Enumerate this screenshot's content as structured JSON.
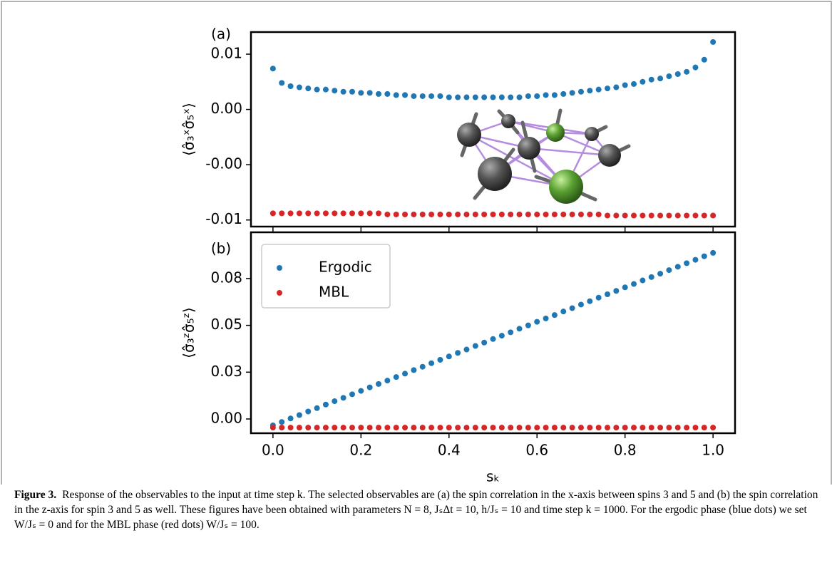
{
  "chart_data": [
    {
      "type": "scatter",
      "panel_label": "(a)",
      "y_label": "⟨σ̂₃ˣσ̂₅ˣ⟩",
      "x": [
        0,
        0.02,
        0.04,
        0.06,
        0.08,
        0.1,
        0.12,
        0.14,
        0.16,
        0.18,
        0.2,
        0.22,
        0.24,
        0.26,
        0.28,
        0.3,
        0.32,
        0.34,
        0.36,
        0.38,
        0.4,
        0.42,
        0.44,
        0.46,
        0.48,
        0.5,
        0.52,
        0.54,
        0.56,
        0.58,
        0.6,
        0.62,
        0.64,
        0.66,
        0.68,
        0.7,
        0.72,
        0.74,
        0.76,
        0.78,
        0.8,
        0.82,
        0.84,
        0.86,
        0.88,
        0.9,
        0.92,
        0.94,
        0.96,
        0.98,
        1
      ],
      "series": [
        {
          "color": "#1f77b4",
          "values": [
            0.0062,
            0.0049,
            0.0046,
            0.0045,
            0.0044,
            0.0043,
            0.0043,
            0.0042,
            0.0041,
            0.0041,
            0.004,
            0.004,
            0.0039,
            0.0039,
            0.0038,
            0.0038,
            0.0037,
            0.0037,
            0.0037,
            0.0037,
            0.0036,
            0.0036,
            0.0036,
            0.0036,
            0.0036,
            0.0036,
            0.0036,
            0.0036,
            0.0036,
            0.0037,
            0.0037,
            0.0038,
            0.0038,
            0.0039,
            0.004,
            0.0041,
            0.0042,
            0.0043,
            0.0044,
            0.0045,
            0.0047,
            0.0048,
            0.005,
            0.0052,
            0.0053,
            0.0055,
            0.0057,
            0.0059,
            0.0063,
            0.007,
            0.0086
          ]
        },
        {
          "color": "#d62728",
          "values": [
            -0.0069,
            -0.0069,
            -0.0069,
            -0.0069,
            -0.0069,
            -0.0069,
            -0.0069,
            -0.0069,
            -0.0069,
            -0.0069,
            -0.0069,
            -0.0069,
            -0.0069,
            -0.007,
            -0.007,
            -0.007,
            -0.007,
            -0.007,
            -0.007,
            -0.007,
            -0.007,
            -0.007,
            -0.007,
            -0.007,
            -0.007,
            -0.007,
            -0.007,
            -0.007,
            -0.007,
            -0.007,
            -0.007,
            -0.007,
            -0.007,
            -0.007,
            -0.007,
            -0.007,
            -0.007,
            -0.007,
            -0.0071,
            -0.0071,
            -0.0071,
            -0.0071,
            -0.0071,
            -0.0071,
            -0.0071,
            -0.0071,
            -0.0071,
            -0.0071,
            -0.0071,
            -0.0071,
            -0.0071
          ]
        }
      ],
      "xlim": [
        -0.05,
        1.05
      ],
      "ylim": [
        -0.0081,
        0.0095
      ],
      "xticks": [
        0,
        0.2,
        0.4,
        0.6,
        0.8,
        1
      ],
      "yticks": [
        {
          "value": -0.0075,
          "label": "-0.01"
        },
        {
          "value": -0.0025,
          "label": "-0.00"
        },
        {
          "value": 0.0025,
          "label": "0.00"
        },
        {
          "value": 0.0075,
          "label": "0.01"
        }
      ]
    },
    {
      "type": "scatter",
      "panel_label": "(b)",
      "y_label": "⟨σ̂₃ᶻσ̂₅ᶻ⟩",
      "x_label": "sₖ",
      "x": [
        0,
        0.02,
        0.04,
        0.06,
        0.08,
        0.1,
        0.12,
        0.14,
        0.16,
        0.18,
        0.2,
        0.22,
        0.24,
        0.26,
        0.28,
        0.3,
        0.32,
        0.34,
        0.36,
        0.38,
        0.4,
        0.42,
        0.44,
        0.46,
        0.48,
        0.5,
        0.52,
        0.54,
        0.56,
        0.58,
        0.6,
        0.62,
        0.64,
        0.66,
        0.68,
        0.7,
        0.72,
        0.74,
        0.76,
        0.78,
        0.8,
        0.82,
        0.84,
        0.86,
        0.88,
        0.9,
        0.92,
        0.94,
        0.96,
        0.98,
        1
      ],
      "series": [
        {
          "name": "Ergodic",
          "color": "#1f77b4",
          "values": [
            -0.0034,
            -0.0016,
            0.0003,
            0.0021,
            0.004,
            0.0058,
            0.0077,
            0.0095,
            0.0113,
            0.0132,
            0.015,
            0.0169,
            0.0187,
            0.0205,
            0.0224,
            0.0242,
            0.0261,
            0.0279,
            0.0298,
            0.0316,
            0.0334,
            0.0353,
            0.0371,
            0.039,
            0.0408,
            0.0427,
            0.0445,
            0.0463,
            0.0482,
            0.05,
            0.0519,
            0.0537,
            0.0555,
            0.0574,
            0.0592,
            0.0611,
            0.0629,
            0.0648,
            0.0666,
            0.0684,
            0.0703,
            0.0721,
            0.074,
            0.0758,
            0.0776,
            0.0795,
            0.0813,
            0.0832,
            0.085,
            0.0869,
            0.0887
          ]
        },
        {
          "name": "MBL",
          "color": "#d62728",
          "values": [
            -0.0046,
            -0.0046,
            -0.0046,
            -0.0046,
            -0.0046,
            -0.0046,
            -0.0046,
            -0.0046,
            -0.0046,
            -0.0046,
            -0.0046,
            -0.0046,
            -0.0046,
            -0.0046,
            -0.0046,
            -0.0046,
            -0.0046,
            -0.0046,
            -0.0046,
            -0.0046,
            -0.0046,
            -0.0046,
            -0.0046,
            -0.0046,
            -0.0046,
            -0.0046,
            -0.0046,
            -0.0046,
            -0.0046,
            -0.0046,
            -0.0046,
            -0.0046,
            -0.0046,
            -0.0046,
            -0.0046,
            -0.0046,
            -0.0046,
            -0.0046,
            -0.0046,
            -0.0046,
            -0.0046,
            -0.0046,
            -0.0046,
            -0.0046,
            -0.0046,
            -0.0046,
            -0.0046,
            -0.0046,
            -0.0046,
            -0.0046,
            -0.0046
          ]
        }
      ],
      "xlim": [
        -0.05,
        1.05
      ],
      "ylim": [
        -0.0076,
        0.0997
      ],
      "xticks": [
        {
          "value": 0,
          "label": "0.0"
        },
        {
          "value": 0.2,
          "label": "0.2"
        },
        {
          "value": 0.4,
          "label": "0.4"
        },
        {
          "value": 0.6,
          "label": "0.6"
        },
        {
          "value": 0.8,
          "label": "0.8"
        },
        {
          "value": 1,
          "label": "1.0"
        }
      ],
      "yticks": [
        {
          "value": 0,
          "label": "0.00"
        },
        {
          "value": 0.025,
          "label": "0.03"
        },
        {
          "value": 0.05,
          "label": "0.05"
        },
        {
          "value": 0.075,
          "label": "0.08"
        }
      ],
      "legend": "upper left"
    }
  ],
  "caption": {
    "label": "Figure 3.",
    "text": "Response of the observables to the input at time step k. The selected observables are (a) the spin correlation in the x-axis between spins 3 and 5 and (b) the spin correlation in the z-axis for spin 3 and 5 as well. These figures have been obtained with parameters N = 8, JₛΔt = 10, h/Jₛ = 10 and time step k = 1000. For the ergodic phase (blue dots) we set W/Jₛ = 0 and for the MBL phase (red dots) W/Jₛ = 100."
  }
}
